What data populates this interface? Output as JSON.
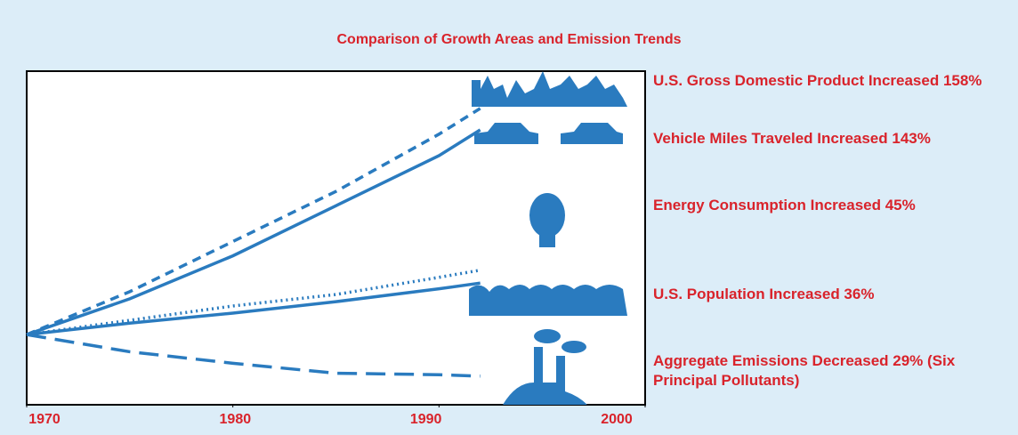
{
  "chart_data": {
    "type": "line",
    "title": "Comparison of Growth Areas and Emission Trends",
    "x": [
      1970,
      1975,
      1980,
      1985,
      1990,
      1992
    ],
    "xlim": [
      1970,
      2000
    ],
    "xticks": [
      1970,
      1980,
      1990,
      2000
    ],
    "ylim": [
      -49,
      184
    ],
    "series": [
      {
        "name": "U.S. Gross Domestic Product Increased 158%",
        "color": "#2a7bbf",
        "dash": "dashed",
        "values": [
          0,
          30,
          65,
          100,
          140,
          158
        ]
      },
      {
        "name": "Vehicle Miles Traveled Increased 143%",
        "color": "#2a7bbf",
        "dash": "solid",
        "values": [
          0,
          25,
          55,
          90,
          125,
          143
        ]
      },
      {
        "name": "Energy Consumption Increased 45%",
        "color": "#2a7bbf",
        "dash": "dotted",
        "values": [
          0,
          10,
          20,
          28,
          40,
          45
        ]
      },
      {
        "name": "U.S. Population Increased 36%",
        "color": "#2a7bbf",
        "dash": "solid",
        "values": [
          0,
          8,
          15,
          23,
          32,
          36
        ]
      },
      {
        "name": "Aggregate Emissions Decreased 29% (Six Principal Pollutants)",
        "color": "#2a7bbf",
        "dash": "long-dash",
        "values": [
          0,
          -12,
          -20,
          -27,
          -28,
          -29
        ]
      }
    ]
  }
}
